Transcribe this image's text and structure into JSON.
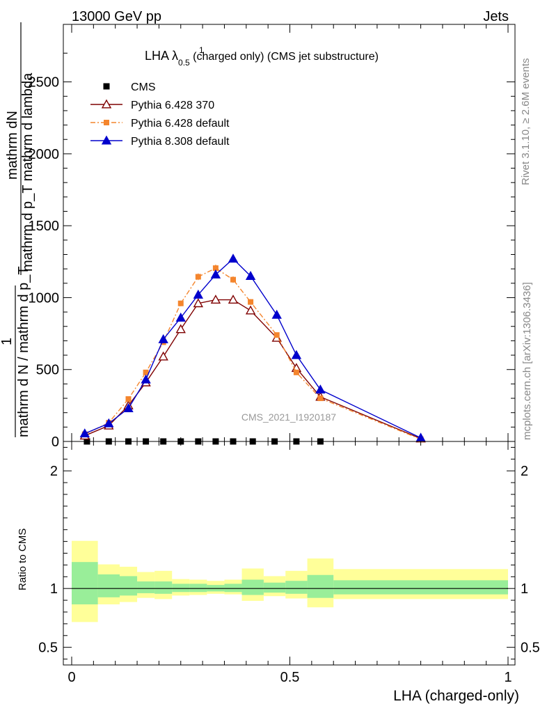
{
  "header": {
    "energy_label": "13000 GeV pp",
    "process_label": "Jets"
  },
  "side_labels": {
    "rivet": "Rivet 3.1.10, ≥ 2.6M events",
    "mcplots": "mcplots.cern.ch [arXiv:1306.3436]"
  },
  "chart_data": [
    {
      "type": "line",
      "role": "main",
      "title": "LHA λ",
      "title_sup": "1",
      "title_sub": "0.5",
      "title_rest": " (charged only) (CMS jet substructure)",
      "watermark": "CMS_2021_I1920187",
      "xlabel": "",
      "ylabel_num_a": "1",
      "ylabel_num_b": "mathrm dN",
      "ylabel_den_a": "mathrm d N / mathrm d p_T",
      "ylabel_den_b": "mathrm d p_T mathrm d lambda",
      "xlim": [
        0,
        1
      ],
      "ylim": [
        0,
        2900
      ],
      "yticks": [
        0,
        500,
        1000,
        1500,
        2000,
        2500
      ],
      "ytick_labels": [
        "0",
        "500",
        "1000",
        "1500",
        "2000",
        "2500"
      ],
      "legend_position": "top-left",
      "series": [
        {
          "name": "CMS",
          "style": "data",
          "color": "#000000",
          "x": [
            0.035,
            0.085,
            0.13,
            0.17,
            0.21,
            0.25,
            0.29,
            0.33,
            0.37,
            0.415,
            0.465,
            0.515,
            0.57
          ],
          "y": [
            0,
            0,
            0,
            0,
            0,
            0,
            0,
            0,
            0,
            0,
            0,
            0,
            0
          ]
        },
        {
          "name": "Pythia 6.428 370",
          "style": "open-triangle-solid",
          "color": "#7f0000",
          "x": [
            0.03,
            0.085,
            0.13,
            0.17,
            0.21,
            0.25,
            0.29,
            0.33,
            0.37,
            0.41,
            0.47,
            0.515,
            0.57,
            0.8
          ],
          "y": [
            40,
            110,
            250,
            410,
            590,
            780,
            960,
            985,
            985,
            910,
            720,
            510,
            310,
            20
          ]
        },
        {
          "name": "Pythia 6.428 default",
          "style": "square-dashdot",
          "color": "#f4852d",
          "x": [
            0.03,
            0.085,
            0.13,
            0.17,
            0.21,
            0.25,
            0.29,
            0.33,
            0.37,
            0.41,
            0.47,
            0.515,
            0.57,
            0.8
          ],
          "y": [
            50,
            130,
            295,
            480,
            690,
            960,
            1145,
            1205,
            1125,
            970,
            740,
            480,
            300,
            15
          ]
        },
        {
          "name": "Pythia 8.308 default",
          "style": "triangle-solid",
          "color": "#0000cc",
          "x": [
            0.03,
            0.085,
            0.13,
            0.17,
            0.21,
            0.25,
            0.29,
            0.33,
            0.37,
            0.41,
            0.47,
            0.515,
            0.57,
            0.8
          ],
          "y": [
            55,
            125,
            230,
            430,
            710,
            860,
            1020,
            1160,
            1270,
            1150,
            880,
            600,
            360,
            25
          ]
        }
      ]
    },
    {
      "type": "area",
      "role": "ratio",
      "ylabel": "Ratio to CMS",
      "xlabel": "LHA (charged-only)",
      "xlim": [
        0,
        1
      ],
      "ylim": [
        0.35,
        2.25
      ],
      "xticks": [
        0,
        0.5,
        1
      ],
      "xtick_labels": [
        "0",
        "0.5",
        "1"
      ],
      "yticks": [
        0.5,
        1,
        2
      ],
      "ytick_labels": [
        "0.5",
        "1",
        "2"
      ],
      "reference_line": 1,
      "bins": [
        {
          "x0": 0.0,
          "x1": 0.06,
          "inner": [
            0.865,
            1.225
          ],
          "outer": [
            0.715,
            1.405
          ]
        },
        {
          "x0": 0.06,
          "x1": 0.11,
          "inner": [
            0.925,
            1.12
          ],
          "outer": [
            0.865,
            1.205
          ]
        },
        {
          "x0": 0.11,
          "x1": 0.15,
          "inner": [
            0.94,
            1.105
          ],
          "outer": [
            0.885,
            1.185
          ]
        },
        {
          "x0": 0.15,
          "x1": 0.19,
          "inner": [
            0.96,
            1.06
          ],
          "outer": [
            0.92,
            1.14
          ]
        },
        {
          "x0": 0.19,
          "x1": 0.23,
          "inner": [
            0.955,
            1.06
          ],
          "outer": [
            0.91,
            1.15
          ]
        },
        {
          "x0": 0.23,
          "x1": 0.27,
          "inner": [
            0.97,
            1.04
          ],
          "outer": [
            0.94,
            1.08
          ]
        },
        {
          "x0": 0.27,
          "x1": 0.31,
          "inner": [
            0.97,
            1.04
          ],
          "outer": [
            0.945,
            1.075
          ]
        },
        {
          "x0": 0.31,
          "x1": 0.35,
          "inner": [
            0.975,
            1.03
          ],
          "outer": [
            0.955,
            1.065
          ]
        },
        {
          "x0": 0.35,
          "x1": 0.39,
          "inner": [
            0.97,
            1.04
          ],
          "outer": [
            0.95,
            1.075
          ]
        },
        {
          "x0": 0.39,
          "x1": 0.44,
          "inner": [
            0.945,
            1.075
          ],
          "outer": [
            0.895,
            1.17
          ]
        },
        {
          "x0": 0.44,
          "x1": 0.49,
          "inner": [
            0.965,
            1.05
          ],
          "outer": [
            0.935,
            1.105
          ]
        },
        {
          "x0": 0.49,
          "x1": 0.54,
          "inner": [
            0.955,
            1.065
          ],
          "outer": [
            0.915,
            1.15
          ]
        },
        {
          "x0": 0.54,
          "x1": 0.6,
          "inner": [
            0.92,
            1.115
          ],
          "outer": [
            0.84,
            1.255
          ]
        },
        {
          "x0": 0.6,
          "x1": 1.0,
          "inner": [
            0.95,
            1.07
          ],
          "outer": [
            0.91,
            1.165
          ]
        }
      ]
    }
  ]
}
